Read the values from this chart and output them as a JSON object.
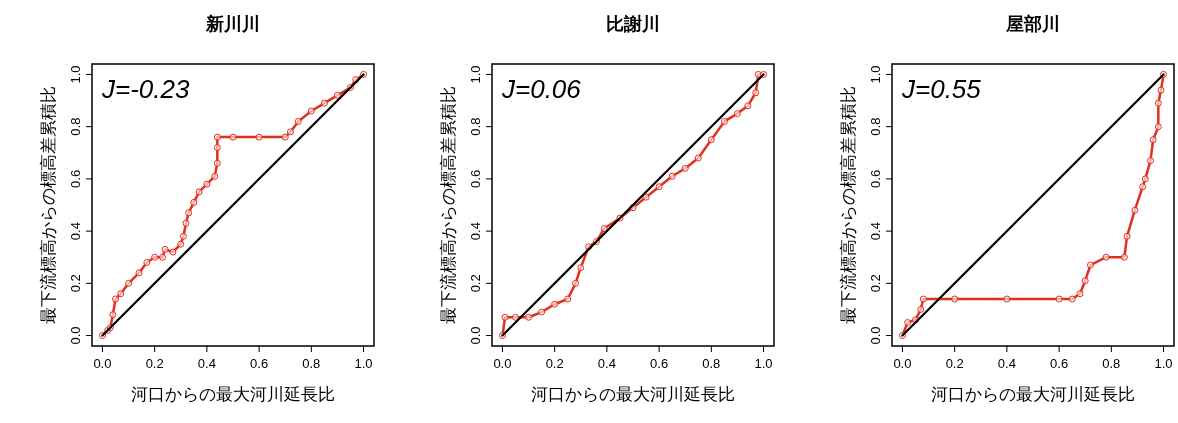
{
  "chart_data": [
    {
      "type": "line",
      "title": "新川川",
      "xlabel": "河口からの最大河川延長比",
      "ylabel": "最下流標高からの標高差累積比",
      "annotations": [
        "J=-0.23"
      ],
      "xlim": [
        -0.04,
        1.04
      ],
      "ylim": [
        -0.04,
        1.04
      ],
      "xticks": [
        {
          "value": 0,
          "label": "0.0"
        },
        {
          "value": 0.2,
          "label": "0.2"
        },
        {
          "value": 0.4,
          "label": "0.4"
        },
        {
          "value": 0.6,
          "label": "0.6"
        },
        {
          "value": 0.8,
          "label": "0.8"
        },
        {
          "value": 1,
          "label": "1.0"
        }
      ],
      "yticks": [
        {
          "value": 0,
          "label": "0.0"
        },
        {
          "value": 0.2,
          "label": "0.2"
        },
        {
          "value": 0.4,
          "label": "0.4"
        },
        {
          "value": 0.6,
          "label": "0.6"
        },
        {
          "value": 0.8,
          "label": "0.8"
        },
        {
          "value": 1,
          "label": "1.0"
        }
      ],
      "series": [
        {
          "type": "line",
          "color": "#e0301e",
          "marker": "circle",
          "x": [
            0,
            0.02,
            0.03,
            0.04,
            0.05,
            0.07,
            0.1,
            0.14,
            0.17,
            0.2,
            0.23,
            0.24,
            0.27,
            0.3,
            0.31,
            0.32,
            0.33,
            0.35,
            0.37,
            0.4,
            0.43,
            0.44,
            0.44,
            0.44,
            0.5,
            0.6,
            0.7,
            0.72,
            0.75,
            0.8,
            0.85,
            0.9,
            0.95,
            0.97,
            1
          ],
          "values": [
            0,
            0.02,
            0.03,
            0.08,
            0.14,
            0.16,
            0.2,
            0.24,
            0.28,
            0.3,
            0.3,
            0.33,
            0.32,
            0.35,
            0.38,
            0.43,
            0.47,
            0.51,
            0.55,
            0.58,
            0.61,
            0.66,
            0.72,
            0.76,
            0.76,
            0.76,
            0.76,
            0.78,
            0.82,
            0.86,
            0.89,
            0.92,
            0.95,
            0.98,
            1
          ]
        },
        {
          "type": "line",
          "color": "#000000",
          "x": [
            0,
            1
          ],
          "values": [
            0,
            1
          ]
        }
      ]
    },
    {
      "type": "line",
      "title": "比謝川",
      "xlabel": "河口からの最大河川延長比",
      "ylabel": "最下流標高からの標高差累積比",
      "annotations": [
        "J=0.06"
      ],
      "xlim": [
        -0.04,
        1.04
      ],
      "ylim": [
        -0.04,
        1.04
      ],
      "xticks": [
        {
          "value": 0,
          "label": "0.0"
        },
        {
          "value": 0.2,
          "label": "0.2"
        },
        {
          "value": 0.4,
          "label": "0.4"
        },
        {
          "value": 0.6,
          "label": "0.6"
        },
        {
          "value": 0.8,
          "label": "0.8"
        },
        {
          "value": 1,
          "label": "1.0"
        }
      ],
      "yticks": [
        {
          "value": 0,
          "label": "0.0"
        },
        {
          "value": 0.2,
          "label": "0.2"
        },
        {
          "value": 0.4,
          "label": "0.4"
        },
        {
          "value": 0.6,
          "label": "0.6"
        },
        {
          "value": 0.8,
          "label": "0.8"
        },
        {
          "value": 1,
          "label": "1.0"
        }
      ],
      "series": [
        {
          "type": "line",
          "color": "#e0301e",
          "marker": "circle",
          "x": [
            0,
            0.01,
            0.05,
            0.1,
            0.15,
            0.2,
            0.25,
            0.28,
            0.3,
            0.33,
            0.36,
            0.39,
            0.45,
            0.5,
            0.55,
            0.6,
            0.65,
            0.7,
            0.75,
            0.8,
            0.85,
            0.9,
            0.94,
            0.97,
            0.98,
            1
          ],
          "values": [
            0,
            0.07,
            0.07,
            0.07,
            0.09,
            0.12,
            0.14,
            0.2,
            0.26,
            0.34,
            0.36,
            0.41,
            0.45,
            0.49,
            0.53,
            0.57,
            0.61,
            0.64,
            0.68,
            0.75,
            0.82,
            0.85,
            0.88,
            0.93,
            1,
            1
          ]
        },
        {
          "type": "line",
          "color": "#000000",
          "x": [
            0,
            1
          ],
          "values": [
            0,
            1
          ]
        }
      ]
    },
    {
      "type": "line",
      "title": "屋部川",
      "xlabel": "河口からの最大河川延長比",
      "ylabel": "最下流標高からの標高差累積比",
      "annotations": [
        "J=0.55"
      ],
      "xlim": [
        -0.04,
        1.04
      ],
      "ylim": [
        -0.04,
        1.04
      ],
      "xticks": [
        {
          "value": 0,
          "label": "0.0"
        },
        {
          "value": 0.2,
          "label": "0.2"
        },
        {
          "value": 0.4,
          "label": "0.4"
        },
        {
          "value": 0.6,
          "label": "0.6"
        },
        {
          "value": 0.8,
          "label": "0.8"
        },
        {
          "value": 1,
          "label": "1.0"
        }
      ],
      "yticks": [
        {
          "value": 0,
          "label": "0.0"
        },
        {
          "value": 0.2,
          "label": "0.2"
        },
        {
          "value": 0.4,
          "label": "0.4"
        },
        {
          "value": 0.6,
          "label": "0.6"
        },
        {
          "value": 0.8,
          "label": "0.8"
        },
        {
          "value": 1,
          "label": "1.0"
        }
      ],
      "series": [
        {
          "type": "line",
          "color": "#e0301e",
          "marker": "circle",
          "x": [
            0,
            0.02,
            0.05,
            0.07,
            0.08,
            0.2,
            0.4,
            0.6,
            0.65,
            0.68,
            0.7,
            0.72,
            0.78,
            0.85,
            0.86,
            0.89,
            0.92,
            0.93,
            0.95,
            0.96,
            0.98,
            0.98,
            0.99,
            1
          ],
          "values": [
            0,
            0.05,
            0.06,
            0.1,
            0.14,
            0.14,
            0.14,
            0.14,
            0.14,
            0.16,
            0.21,
            0.27,
            0.3,
            0.3,
            0.38,
            0.48,
            0.57,
            0.6,
            0.67,
            0.75,
            0.8,
            0.89,
            0.94,
            1
          ]
        },
        {
          "type": "line",
          "color": "#000000",
          "x": [
            0,
            1
          ],
          "values": [
            0,
            1
          ]
        }
      ]
    }
  ]
}
